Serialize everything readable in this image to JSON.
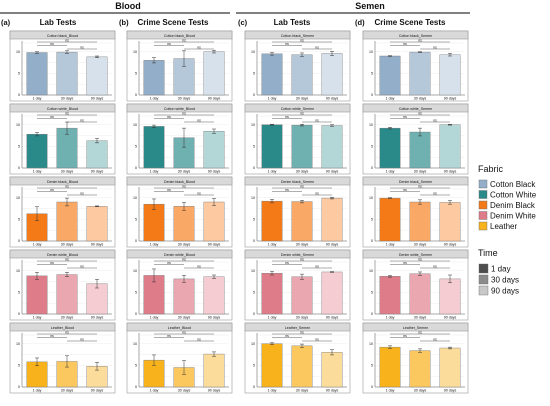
{
  "header": {
    "group_blood": "Blood",
    "group_semen": "Semen",
    "columns": [
      {
        "letter": "(a)",
        "title": "Lab Tests"
      },
      {
        "letter": "(b)",
        "title": "Crime Scene Tests"
      },
      {
        "letter": "(c)",
        "title": "Lab Tests"
      },
      {
        "letter": "(d)",
        "title": "Crime Scene Tests"
      }
    ]
  },
  "legend": {
    "fabric_title": "Fabric",
    "fabric_items": [
      {
        "label": "Cotton Black",
        "color": "#93aec8"
      },
      {
        "label": "Cotton White",
        "color": "#2a8a89"
      },
      {
        "label": "Denim Black",
        "color": "#f47a18"
      },
      {
        "label": "Denim White",
        "color": "#df7c8a"
      },
      {
        "label": "Leather",
        "color": "#f8b21c"
      }
    ],
    "time_title": "Time",
    "time_items": [
      {
        "label": "1 day",
        "color": "#4d4d4d"
      },
      {
        "label": "30 days",
        "color": "#8c8c8c"
      },
      {
        "label": "90 days",
        "color": "#c8c8c8"
      }
    ]
  },
  "chart_data": {
    "type": "bar",
    "categories": [
      "1 day",
      "30 days",
      "90 days"
    ],
    "yticks": [
      0,
      5,
      10
    ],
    "ylim": [
      0,
      12
    ],
    "significance_label": "ns",
    "fabric_colors": {
      "Cotton Black": [
        "#93aec8",
        "#b5c8da",
        "#d6e1ec"
      ],
      "Cotton White": [
        "#2a8a89",
        "#6fb0b0",
        "#b3d6d6"
      ],
      "Denim Black": [
        "#f47a18",
        "#f9a866",
        "#fcc9a0"
      ],
      "Denim White": [
        "#df7c8a",
        "#eba7b0",
        "#f5ccd2"
      ],
      "Leather": [
        "#f8b21c",
        "#fbc860",
        "#fcdc9a"
      ]
    },
    "panels": [
      {
        "fabric": "Cotton Black",
        "col": 0,
        "row": 0,
        "title": "Cotton black_Blood",
        "values": [
          9.8,
          9.9,
          8.8
        ],
        "errors": [
          0.2,
          0.3,
          0.2
        ]
      },
      {
        "fabric": "Cotton White",
        "col": 0,
        "row": 1,
        "title": "Cotton white_Blood",
        "values": [
          7.8,
          9.2,
          6.3
        ],
        "errors": [
          0.4,
          1.4,
          0.5
        ]
      },
      {
        "fabric": "Denim Black",
        "col": 0,
        "row": 2,
        "title": "Denim black_Blood",
        "values": [
          6.3,
          9.0,
          8.0
        ],
        "errors": [
          1.6,
          0.9,
          0.1
        ]
      },
      {
        "fabric": "Denim White",
        "col": 0,
        "row": 3,
        "title": "Denim white_Blood",
        "values": [
          8.8,
          9.1,
          7.0
        ],
        "errors": [
          0.8,
          0.5,
          1.0
        ]
      },
      {
        "fabric": "Leather",
        "col": 0,
        "row": 4,
        "title": "Leather_Blood",
        "values": [
          5.8,
          5.9,
          4.8
        ],
        "errors": [
          0.9,
          1.3,
          0.9
        ]
      },
      {
        "fabric": "Cotton Black",
        "col": 1,
        "row": 0,
        "title": "Cotton black_Blood",
        "values": [
          8.0,
          8.4,
          10.0
        ],
        "errors": [
          0.6,
          1.8,
          0.3
        ]
      },
      {
        "fabric": "Cotton White",
        "col": 1,
        "row": 1,
        "title": "Cotton white_Blood",
        "values": [
          9.6,
          7.0,
          8.5
        ],
        "errors": [
          0.3,
          2.2,
          0.5
        ]
      },
      {
        "fabric": "Denim Black",
        "col": 1,
        "row": 2,
        "title": "Denim black_Blood",
        "values": [
          8.5,
          8.0,
          9.0
        ],
        "errors": [
          1.2,
          0.9,
          0.8
        ]
      },
      {
        "fabric": "Denim White",
        "col": 1,
        "row": 3,
        "title": "Denim white_Blood",
        "values": [
          8.9,
          8.1,
          8.6
        ],
        "errors": [
          1.5,
          0.8,
          0.4
        ]
      },
      {
        "fabric": "Leather",
        "col": 1,
        "row": 4,
        "title": "Leather_Blood",
        "values": [
          6.2,
          4.5,
          7.6
        ],
        "errors": [
          1.2,
          1.6,
          0.5
        ]
      },
      {
        "fabric": "Cotton Black",
        "col": 2,
        "row": 0,
        "title": "Cotton black_Semen",
        "values": [
          9.5,
          9.3,
          9.6
        ],
        "errors": [
          0.3,
          0.4,
          0.5
        ]
      },
      {
        "fabric": "Cotton White",
        "col": 2,
        "row": 1,
        "title": "Cotton white_Semen",
        "values": [
          10.0,
          9.9,
          9.8
        ],
        "errors": [
          0.1,
          0.2,
          0.2
        ]
      },
      {
        "fabric": "Denim Black",
        "col": 2,
        "row": 2,
        "title": "Denim black_Semen",
        "values": [
          9.2,
          9.1,
          9.9
        ],
        "errors": [
          0.4,
          0.3,
          0.2
        ]
      },
      {
        "fabric": "Denim White",
        "col": 2,
        "row": 3,
        "title": "Denim white_Semen",
        "values": [
          9.4,
          8.6,
          9.7
        ],
        "errors": [
          0.4,
          0.6,
          0.1
        ]
      },
      {
        "fabric": "Leather",
        "col": 2,
        "row": 4,
        "title": "Leather_Semen",
        "values": [
          10.0,
          9.5,
          8.0
        ],
        "errors": [
          0.2,
          0.4,
          0.6
        ]
      },
      {
        "fabric": "Cotton Black",
        "col": 3,
        "row": 0,
        "title": "Cotton black_Semen",
        "values": [
          9.0,
          9.9,
          9.3
        ],
        "errors": [
          0.1,
          0.1,
          0.3
        ]
      },
      {
        "fabric": "Cotton White",
        "col": 3,
        "row": 1,
        "title": "Cotton white_Semen",
        "values": [
          9.2,
          8.3,
          10.0
        ],
        "errors": [
          0.2,
          0.9,
          0.1
        ]
      },
      {
        "fabric": "Denim Black",
        "col": 3,
        "row": 2,
        "title": "Denim black_Semen",
        "values": [
          9.9,
          9.0,
          8.9
        ],
        "errors": [
          0.1,
          0.5,
          0.4
        ]
      },
      {
        "fabric": "Denim White",
        "col": 3,
        "row": 3,
        "title": "Denim white_Semen",
        "values": [
          8.7,
          9.3,
          8.1
        ],
        "errors": [
          0.2,
          0.4,
          0.9
        ]
      },
      {
        "fabric": "Leather",
        "col": 3,
        "row": 4,
        "title": "Leather_Semen",
        "values": [
          9.2,
          8.4,
          9.0
        ],
        "errors": [
          0.3,
          0.4,
          0.2
        ]
      }
    ]
  }
}
